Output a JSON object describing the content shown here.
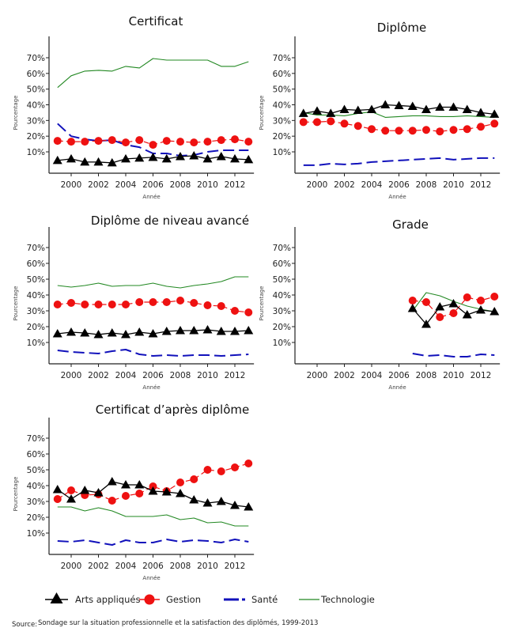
{
  "chart_data": {
    "type": "line",
    "layout": "small-multiples",
    "xlabel": "Année",
    "ylabel": "Pourcentage",
    "x": [
      1999,
      2000,
      2001,
      2002,
      2003,
      2004,
      2005,
      2006,
      2007,
      2008,
      2009,
      2010,
      2011,
      2012,
      2013
    ],
    "xticks": [
      2000,
      2002,
      2004,
      2006,
      2008,
      2010,
      2012
    ],
    "yticks": [
      10,
      20,
      30,
      40,
      50,
      60,
      70
    ],
    "ytick_labels": [
      "10%",
      "20%",
      "30%",
      "40%",
      "50%",
      "60%",
      "70%"
    ],
    "ylim": [
      -3,
      82
    ],
    "xlim": [
      1998.35,
      2013.4
    ],
    "grid": false,
    "legend_position": "bottom",
    "series_styles": [
      {
        "name": "Arts appliqués",
        "color": "#000000",
        "line": "solid",
        "marker": "triangle"
      },
      {
        "name": "Gestion",
        "color": "#ee1111",
        "line": "dashed",
        "marker": "circle"
      },
      {
        "name": "Santé",
        "color": "#1111bb",
        "line": "long-dash",
        "marker": "none"
      },
      {
        "name": "Technologie",
        "color": "#228822",
        "line": "solid-thin",
        "marker": "none"
      }
    ],
    "panels": [
      {
        "title": "Certificat",
        "series": [
          {
            "name": "Arts appliqués",
            "values": [
              4.5,
              5.5,
              3.5,
              3.5,
              3,
              5.5,
              6,
              6.5,
              5.5,
              7,
              7.5,
              5.5,
              7,
              5.5,
              5
            ]
          },
          {
            "name": "Gestion",
            "values": [
              17,
              16.5,
              16.5,
              17,
              17.5,
              16,
              17.5,
              14.5,
              17,
              16.5,
              16,
              16.5,
              17.5,
              18,
              16.5
            ]
          },
          {
            "name": "Santé",
            "values": [
              28,
              20,
              18,
              17,
              17.5,
              14.5,
              13,
              9,
              9,
              7.5,
              8,
              10,
              11,
              11,
              11
            ]
          },
          {
            "name": "Technologie",
            "values": [
              51,
              58.5,
              61.5,
              62,
              61.5,
              64.5,
              63.5,
              69.5,
              68.5,
              68.5,
              68.5,
              68.5,
              64.5,
              64.5,
              67.5
            ]
          }
        ]
      },
      {
        "title": "Diplôme",
        "series": [
          {
            "name": "Arts appliqués",
            "values": [
              34.5,
              36,
              34.5,
              37,
              36.5,
              37,
              40,
              39.5,
              39,
              37,
              38.5,
              38.5,
              37,
              35,
              34
            ]
          },
          {
            "name": "Gestion",
            "values": [
              29,
              29,
              29.5,
              28,
              26.5,
              24.5,
              23.5,
              23.5,
              23.5,
              24,
              23,
              24,
              24.5,
              26,
              28
            ]
          },
          {
            "name": "Santé",
            "values": [
              1.5,
              1.5,
              2.5,
              2,
              2.5,
              3.5,
              4,
              4.5,
              5,
              5.5,
              6,
              5,
              5.5,
              6,
              6
            ]
          },
          {
            "name": "Technologie",
            "values": [
              35,
              33.5,
              33.5,
              33,
              34.5,
              35.5,
              32,
              32.5,
              33,
              33,
              32.5,
              32.5,
              33,
              32.5,
              32
            ]
          }
        ]
      },
      {
        "title": "Diplôme de niveau avancé",
        "series": [
          {
            "name": "Arts appliqués",
            "values": [
              15.5,
              16.5,
              16,
              15,
              16,
              15,
              16.5,
              15.5,
              17,
              17.5,
              17.5,
              18,
              17,
              17,
              17.5
            ]
          },
          {
            "name": "Gestion",
            "values": [
              34,
              35,
              34,
              34,
              34,
              34,
              35.5,
              35.5,
              35.5,
              36.5,
              35,
              33.5,
              33,
              30,
              29
            ]
          },
          {
            "name": "Santé",
            "values": [
              5,
              4,
              3.5,
              3,
              4.5,
              5.5,
              2.5,
              1.5,
              2,
              1.5,
              2,
              2,
              1.5,
              2,
              2.5
            ]
          },
          {
            "name": "Technologie",
            "values": [
              46,
              45,
              46,
              47.5,
              45.5,
              46,
              46,
              47.5,
              45.5,
              44.5,
              46,
              47,
              48.5,
              51.5,
              51.5
            ]
          }
        ]
      },
      {
        "title": "Grade",
        "series": [
          {
            "name": "Arts appliqués",
            "values": [
              null,
              null,
              null,
              null,
              null,
              null,
              null,
              null,
              31.5,
              21.5,
              32.5,
              34.5,
              27.5,
              30.5,
              29.5
            ]
          },
          {
            "name": "Gestion",
            "values": [
              null,
              null,
              null,
              null,
              null,
              null,
              null,
              null,
              36.5,
              35.5,
              26,
              28.5,
              38.5,
              36.5,
              39
            ]
          },
          {
            "name": "Santé",
            "values": [
              null,
              null,
              null,
              null,
              null,
              null,
              null,
              null,
              3,
              1.5,
              2,
              1,
              1,
              2.5,
              2
            ]
          },
          {
            "name": "Technologie",
            "values": [
              null,
              null,
              null,
              null,
              null,
              null,
              null,
              null,
              30,
              41.5,
              39.5,
              36,
              33,
              31,
              29.5
            ]
          }
        ]
      },
      {
        "title": "Certificat d’après diplôme",
        "series": [
          {
            "name": "Arts appliqués",
            "values": [
              37.5,
              31.5,
              37,
              35.5,
              42.5,
              40.5,
              40.5,
              36.5,
              36,
              35,
              31,
              29,
              30,
              27.5,
              26.5
            ]
          },
          {
            "name": "Gestion",
            "values": [
              31.5,
              37,
              34,
              34.5,
              30.5,
              33.5,
              35,
              39.5,
              36.5,
              42,
              44,
              50,
              49,
              51.5,
              54
            ]
          },
          {
            "name": "Santé",
            "values": [
              5,
              4.5,
              5.5,
              4,
              2.5,
              5.5,
              4,
              4,
              6,
              4.5,
              5.5,
              5,
              4,
              6,
              4.5
            ]
          },
          {
            "name": "Technologie",
            "values": [
              26.5,
              26.5,
              24,
              26,
              24,
              20.5,
              20.5,
              20.5,
              21.5,
              18.5,
              19.5,
              16.5,
              17,
              14.5,
              14.5
            ]
          }
        ]
      }
    ]
  },
  "legend": {
    "items": [
      "Arts appliqués",
      "Gestion",
      "Santé",
      "Technologie"
    ]
  },
  "source": {
    "label": "Source:",
    "text": "Sondage sur la situation professionnelle et la satisfaction des diplômés, 1999-2013"
  }
}
